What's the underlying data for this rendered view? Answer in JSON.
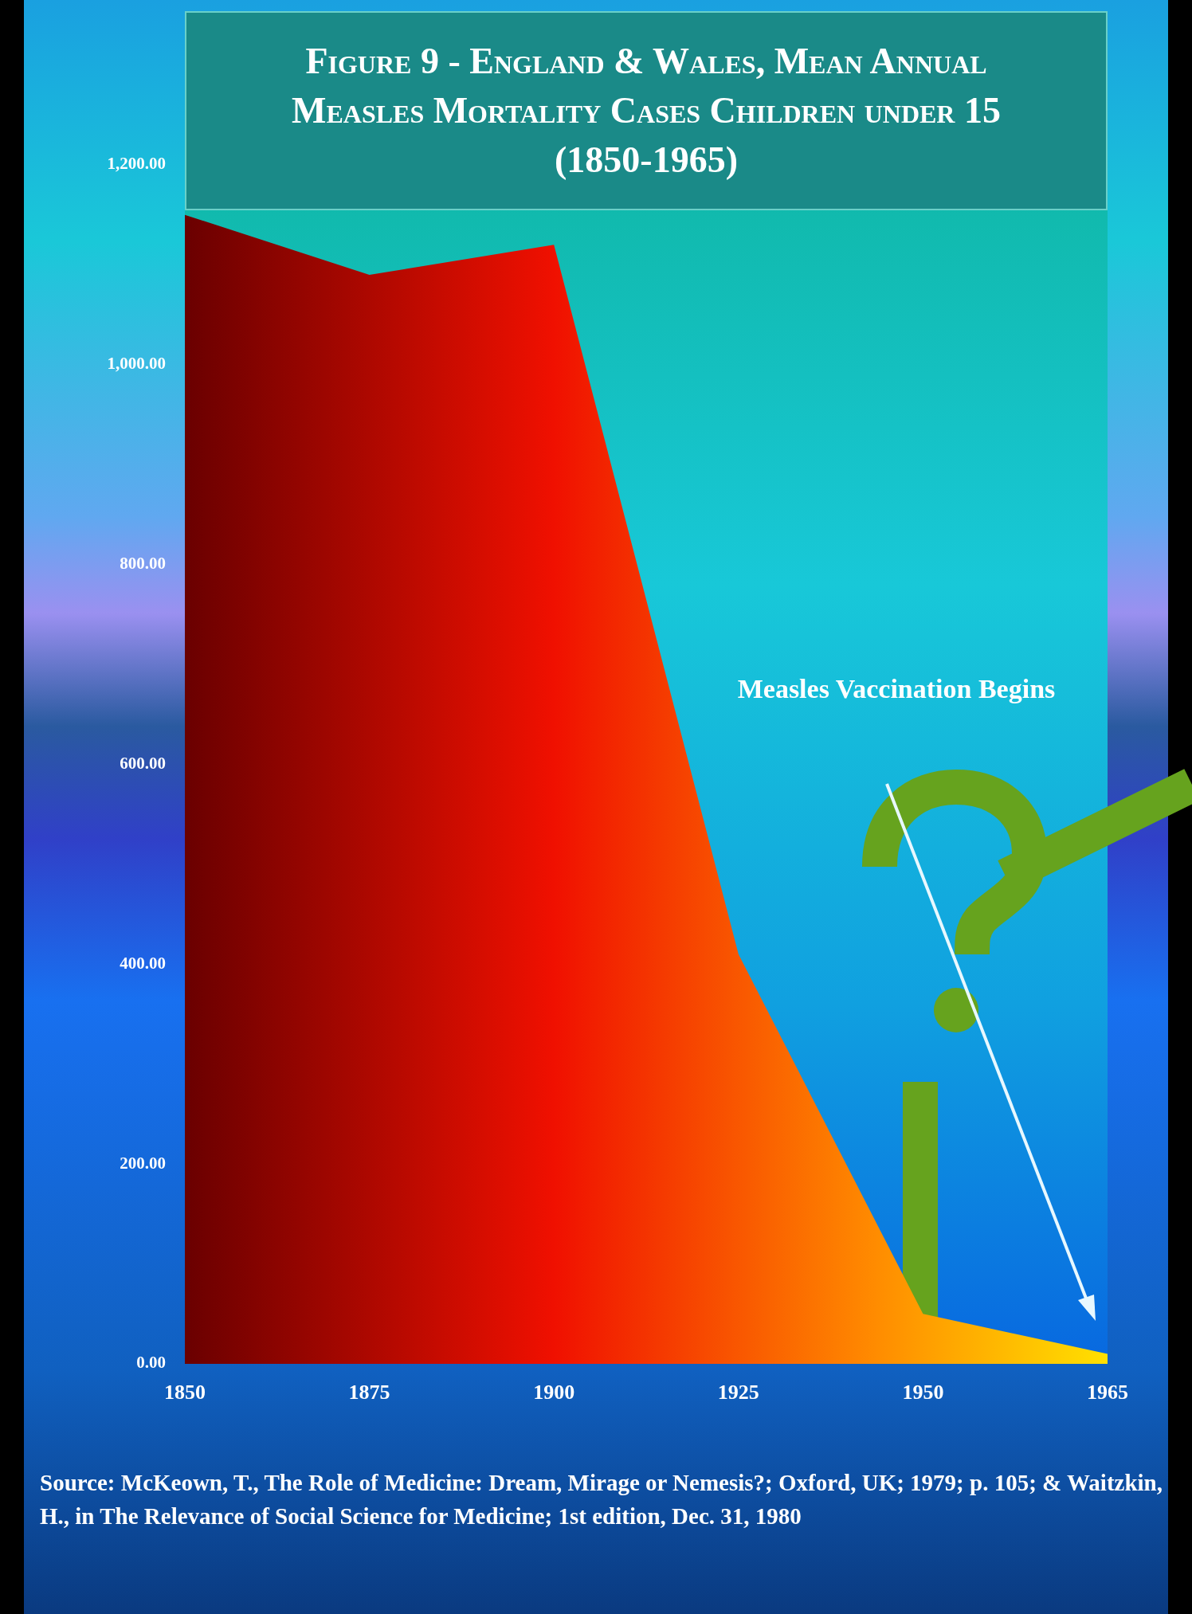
{
  "chart_data": {
    "type": "area",
    "title": "Figure 9 - England & Wales, Mean Annual Measles Mortality Cases Children under 15 (1850-1965)",
    "categories": [
      "1850",
      "1875",
      "1900",
      "1925",
      "1950",
      "1965"
    ],
    "values": [
      1150,
      1090,
      1120,
      410,
      50,
      10
    ],
    "color": "#f01000",
    "ylim": [
      0,
      1200
    ],
    "yticks": [
      {
        "value": 0,
        "label": "0.00"
      },
      {
        "value": 200,
        "label": "200.00"
      },
      {
        "value": 400,
        "label": "400.00"
      },
      {
        "value": 600,
        "label": "600.00"
      },
      {
        "value": 800,
        "label": "800.00"
      },
      {
        "value": 1000,
        "label": "1,000.00"
      },
      {
        "value": 1200,
        "label": "1,200.00"
      }
    ],
    "annotations": [
      "Measles Vaccination Begins",
      "Source: McKeown, T., The Role of Medicine: Dream, Mirage or Nemesis?; Oxford, UK; 1979; p. 105; & Waitzkin, H., in The Relevance of Social Science for Medicine; 1st edition, Dec. 31, 1980"
    ]
  }
}
